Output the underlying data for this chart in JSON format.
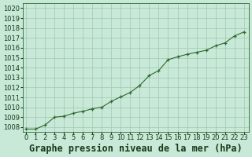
{
  "x": [
    0,
    1,
    2,
    3,
    4,
    5,
    6,
    7,
    8,
    9,
    10,
    11,
    12,
    13,
    14,
    15,
    16,
    17,
    18,
    19,
    20,
    21,
    22,
    23
  ],
  "y": [
    1007.8,
    1007.8,
    1008.2,
    1009.0,
    1009.1,
    1009.4,
    1009.6,
    1009.85,
    1010.0,
    1010.6,
    1011.05,
    1011.5,
    1012.2,
    1013.2,
    1013.7,
    1014.8,
    1015.1,
    1015.35,
    1015.55,
    1015.75,
    1016.2,
    1016.5,
    1017.2,
    1017.6
  ],
  "full_x": [
    0,
    0.33,
    0.66,
    1,
    1.5,
    2,
    2.5,
    3,
    3.5,
    4,
    4.5,
    5,
    5.5,
    6,
    6.5,
    7,
    7.5,
    8,
    8.5,
    9,
    9.5,
    10,
    10.5,
    11,
    11.5,
    12,
    12.5,
    13,
    13.5,
    14,
    14.5,
    15,
    15.5,
    16,
    16.5,
    17,
    17.5,
    18,
    18.5,
    19,
    19.5,
    20,
    20.5,
    21,
    21.5,
    22,
    22.5,
    23
  ],
  "full_y": [
    1007.8,
    1007.8,
    1007.8,
    1007.8,
    1008.0,
    1008.2,
    1008.6,
    1009.0,
    1009.05,
    1009.1,
    1009.25,
    1009.4,
    1009.5,
    1009.6,
    1009.72,
    1009.85,
    1009.93,
    1010.0,
    1010.3,
    1010.6,
    1010.83,
    1011.05,
    1011.27,
    1011.5,
    1011.85,
    1012.2,
    1012.7,
    1013.2,
    1013.45,
    1013.7,
    1014.25,
    1014.8,
    1014.95,
    1015.1,
    1015.22,
    1015.35,
    1015.45,
    1015.55,
    1015.65,
    1015.75,
    1015.97,
    1016.2,
    1016.35,
    1016.5,
    1016.85,
    1017.2,
    1017.4,
    1017.6
  ],
  "line_color": "#2d6a2d",
  "marker_color": "#2d6a2d",
  "bg_color": "#c8e8d8",
  "grid_color": "#a0c8b0",
  "title": "Graphe pression niveau de la mer (hPa)",
  "ylim_min": 1007.5,
  "ylim_max": 1020.5,
  "ytick_min": 1008,
  "ytick_max": 1020,
  "xlim_min": -0.3,
  "xlim_max": 23.5,
  "title_fontsize": 8.5,
  "tick_fontsize": 6
}
